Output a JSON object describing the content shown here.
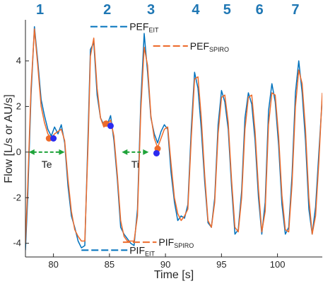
{
  "chart_data": {
    "type": "line",
    "title": "",
    "xlabel": "Time [s]",
    "ylabel": "Flow [L/s or AU/s]",
    "xlim": [
      77.5,
      104
    ],
    "ylim": [
      -4.6,
      5.8
    ],
    "x_ticks": [
      80,
      85,
      90,
      95,
      100
    ],
    "y_ticks": [
      -4,
      -2,
      0,
      2,
      4
    ],
    "grid": false,
    "breath_numbers": [
      {
        "label": "1",
        "x": 78.8
      },
      {
        "label": "2",
        "x": 84.8
      },
      {
        "label": "3",
        "x": 88.7
      },
      {
        "label": "4",
        "x": 92.7
      },
      {
        "label": "5",
        "x": 95.5
      },
      {
        "label": "6",
        "x": 98.4
      },
      {
        "label": "7",
        "x": 101.6
      }
    ],
    "series": [
      {
        "color": "#0072bd",
        "x": [
          77.5,
          77.7,
          78.0,
          78.3,
          78.6,
          78.9,
          79.2,
          79.5,
          79.8,
          80.1,
          80.4,
          80.7,
          81.0,
          81.3,
          81.6,
          81.9,
          82.2,
          82.5,
          82.8,
          83.1,
          83.3,
          83.6,
          83.9,
          84.2,
          84.5,
          84.8,
          85.1,
          85.4,
          85.7,
          86.0,
          86.3,
          86.6,
          86.9,
          87.2,
          87.5,
          87.8,
          88.1,
          88.4,
          88.7,
          89.0,
          89.3,
          89.6,
          89.9,
          90.2,
          90.5,
          90.8,
          91.1,
          91.4,
          91.7,
          92.0,
          92.3,
          92.6,
          92.9,
          93.2,
          93.5,
          93.8,
          94.1,
          94.4,
          94.7,
          95.0,
          95.3,
          95.6,
          95.9,
          96.2,
          96.5,
          96.8,
          97.1,
          97.4,
          97.7,
          98.0,
          98.3,
          98.6,
          98.9,
          99.2,
          99.5,
          99.8,
          100.1,
          100.4,
          100.7,
          101.0,
          101.3,
          101.6,
          101.9,
          102.2,
          102.5,
          102.8,
          103.1,
          103.4,
          103.7,
          104.0
        ],
        "y": [
          -4.3,
          -2.0,
          2.5,
          5.5,
          4.0,
          2.3,
          1.6,
          1.0,
          0.7,
          1.1,
          0.8,
          1.2,
          0.4,
          -1.5,
          -2.8,
          -3.3,
          -3.9,
          -4.2,
          -4.1,
          1.0,
          4.5,
          4.8,
          2.5,
          1.5,
          1.2,
          1.2,
          1.6,
          0.5,
          -1.2,
          -3.3,
          -3.6,
          -3.8,
          -4.0,
          -4.1,
          -2.5,
          2.2,
          5.2,
          3.5,
          1.5,
          0.8,
          0.4,
          0.9,
          1.2,
          1.0,
          -0.9,
          -2.2,
          -3.0,
          -2.8,
          -2.9,
          -2.3,
          1.0,
          3.5,
          2.8,
          1.0,
          -1.3,
          -3.1,
          -3.3,
          -2.0,
          1.2,
          2.7,
          2.2,
          1.0,
          -1.5,
          -3.6,
          -3.4,
          -1.7,
          1.5,
          2.6,
          2.1,
          0.5,
          -2.0,
          -3.6,
          -2.2,
          1.8,
          3.0,
          2.2,
          0.3,
          -2.3,
          -3.6,
          -3.3,
          -1.0,
          2.6,
          4.0,
          2.6,
          0.5,
          -2.5,
          -3.6,
          -2.4,
          0.0,
          2.4
        ]
      },
      {
        "color": "#ed6b2b",
        "x": [
          77.5,
          77.7,
          78.0,
          78.3,
          78.6,
          78.9,
          79.2,
          79.5,
          79.8,
          80.1,
          80.4,
          80.7,
          81.0,
          81.3,
          81.6,
          81.9,
          82.2,
          82.5,
          82.8,
          83.1,
          83.3,
          83.6,
          83.9,
          84.2,
          84.5,
          84.8,
          85.1,
          85.4,
          85.7,
          86.0,
          86.3,
          86.6,
          86.9,
          87.2,
          87.5,
          87.8,
          88.1,
          88.4,
          88.7,
          89.0,
          89.3,
          89.6,
          89.9,
          90.2,
          90.5,
          90.8,
          91.1,
          91.4,
          91.7,
          92.0,
          92.3,
          92.6,
          92.9,
          93.2,
          93.5,
          93.8,
          94.1,
          94.4,
          94.7,
          95.0,
          95.3,
          95.6,
          95.9,
          96.2,
          96.5,
          96.8,
          97.1,
          97.4,
          97.7,
          98.0,
          98.3,
          98.6,
          98.9,
          99.2,
          99.5,
          99.8,
          100.1,
          100.4,
          100.7,
          101.0,
          101.3,
          101.6,
          101.9,
          102.2,
          102.5,
          102.8,
          103.1,
          103.4,
          103.7,
          104.0
        ],
        "y": [
          -4.0,
          -1.5,
          2.8,
          5.4,
          3.8,
          2.0,
          1.3,
          0.8,
          0.6,
          0.8,
          0.9,
          1.0,
          0.5,
          -1.2,
          -2.6,
          -3.4,
          -3.7,
          -3.9,
          -3.9,
          0.5,
          4.2,
          5.0,
          2.8,
          1.5,
          1.1,
          1.2,
          1.4,
          0.7,
          -1.0,
          -3.0,
          -3.7,
          -3.9,
          -3.9,
          -3.9,
          -2.8,
          1.8,
          4.6,
          3.8,
          1.6,
          0.6,
          0.2,
          0.6,
          1.0,
          1.1,
          -0.5,
          -2.0,
          -2.7,
          -3.0,
          -2.8,
          -2.5,
          0.6,
          3.2,
          3.3,
          1.5,
          -1.0,
          -3.0,
          -3.3,
          -2.2,
          0.8,
          2.4,
          2.5,
          1.3,
          -1.2,
          -3.3,
          -3.5,
          -2.0,
          1.0,
          2.4,
          2.5,
          0.9,
          -1.6,
          -3.5,
          -2.6,
          1.2,
          2.6,
          2.5,
          0.7,
          -1.9,
          -3.4,
          -3.5,
          -1.4,
          2.0,
          3.6,
          3.0,
          1.0,
          -2.0,
          -3.6,
          -2.8,
          -0.4,
          2.6
        ]
      }
    ],
    "markers": [
      {
        "color": "#ed6b2b",
        "x": 79.6,
        "y": 0.6
      },
      {
        "color": "#2b2bf0",
        "x": 80.0,
        "y": 0.6
      },
      {
        "color": "#ed6b2b",
        "x": 84.7,
        "y": 1.25
      },
      {
        "color": "#2b2bf0",
        "x": 85.1,
        "y": 1.15
      },
      {
        "color": "#ed6b2b",
        "x": 89.3,
        "y": 0.15
      },
      {
        "color": "#2b2bf0",
        "x": 89.2,
        "y": -0.05
      }
    ],
    "peak_lines": [
      {
        "label": "PEF",
        "sub": "EIT",
        "color": "#0072bd",
        "x0": 83.3,
        "x1": 86.6,
        "y": 5.5
      },
      {
        "label": "PEF",
        "sub": "SPIRO",
        "color": "#ed6b2b",
        "x0": 88.9,
        "x1": 92.0,
        "y": 4.65
      },
      {
        "label": "PIF",
        "sub": "SPIRO",
        "color": "#ed6b2b",
        "x0": 86.2,
        "x1": 89.2,
        "y": -3.95
      },
      {
        "label": "PIF",
        "sub": "EIT",
        "color": "#0072bd",
        "x0": 82.5,
        "x1": 86.6,
        "y": -4.3
      }
    ],
    "durations": [
      {
        "label": "Te",
        "color": "#1fa33a",
        "x0": 77.8,
        "x1": 81.0,
        "y": 0.0
      },
      {
        "label": "Ti",
        "color": "#1fa33a",
        "x0": 86.1,
        "x1": 88.5,
        "y": 0.0
      }
    ]
  }
}
